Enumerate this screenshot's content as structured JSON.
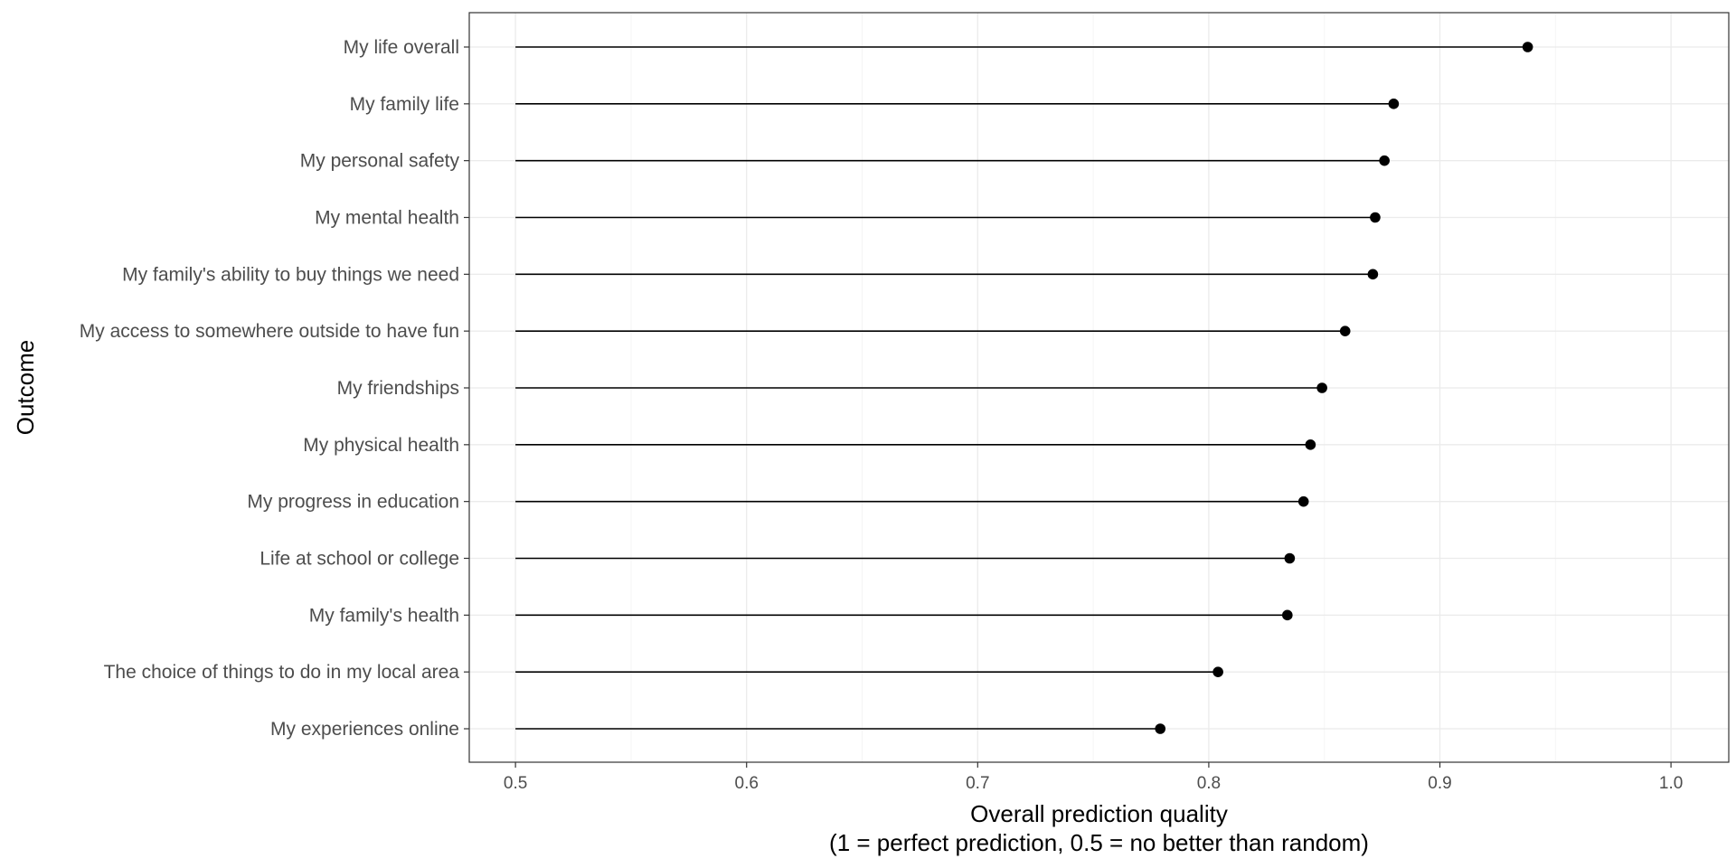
{
  "chart_data": {
    "type": "lollipop",
    "title": "",
    "xlabel": "Overall prediction quality",
    "xlabel_line2": "(1 = perfect prediction, 0.5 = no better than random)",
    "ylabel": "Outcome",
    "xlim": [
      0.48,
      1.025
    ],
    "x_ticks": [
      0.5,
      0.6,
      0.7,
      0.8,
      0.9,
      1.0
    ],
    "x_tick_labels": [
      "0.5",
      "0.6",
      "0.7",
      "0.8",
      "0.9",
      "1.0"
    ],
    "baseline": 0.5,
    "grid": true,
    "legend": "none",
    "categories": [
      "My life overall",
      "My family life",
      "My personal safety",
      "My mental health",
      "My family's ability to buy things we need",
      "My access to somewhere outside to have fun",
      "My friendships",
      "My physical health",
      "My progress in education",
      "Life at school or college",
      "My family's health",
      "The choice of things to do in my local area",
      "My experiences online"
    ],
    "values": [
      0.938,
      0.88,
      0.876,
      0.872,
      0.871,
      0.859,
      0.849,
      0.844,
      0.841,
      0.835,
      0.834,
      0.804,
      0.779
    ]
  },
  "colors": {
    "point": "#000000",
    "segment": "#000000",
    "grid_major": "#ebebeb",
    "grid_minor": "#f5f5f5",
    "panel_border": "#333333",
    "tick_text": "#4d4d4d"
  }
}
